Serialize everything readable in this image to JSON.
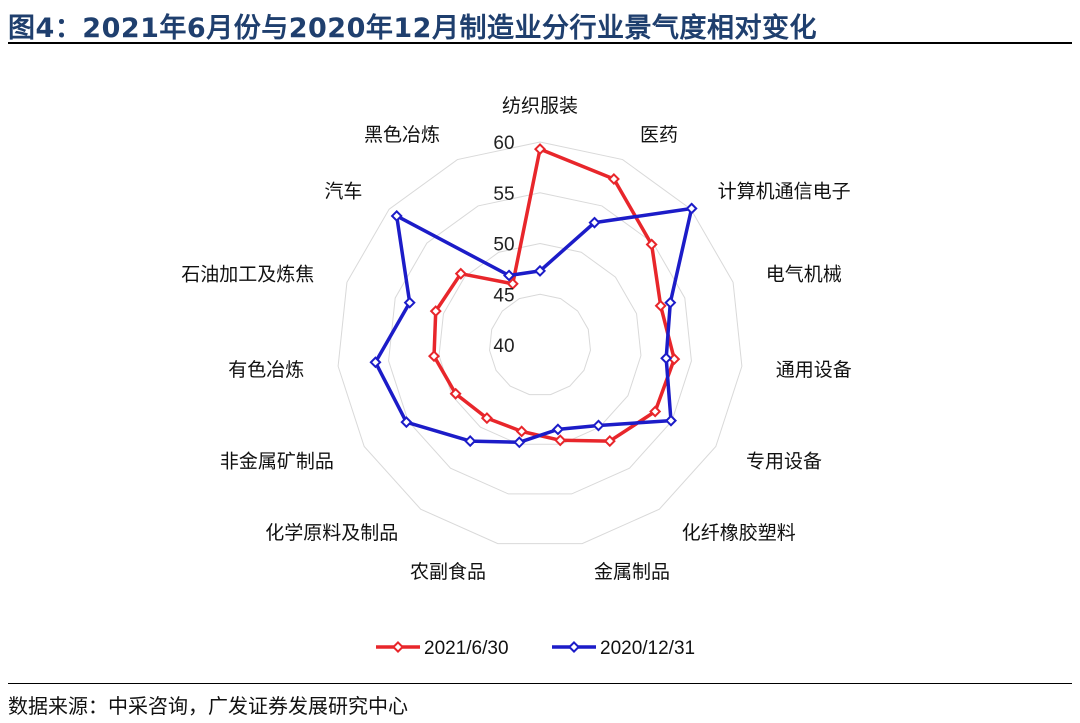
{
  "header": {
    "title": "图4：2021年6月份与2020年12月制造业分行业景气度相对变化"
  },
  "footer": {
    "source": "数据来源：中采咨询，广发证券发展研究中心"
  },
  "chart_data": {
    "type": "radar",
    "title": "图4：2021年6月份与2020年12月制造业分行业景气度相对变化",
    "categories": [
      "纺织服装",
      "医药",
      "计算机通信电子",
      "电气机械",
      "通用设备",
      "专用设备",
      "化纤橡胶塑料",
      "金属制品",
      "农副食品",
      "化学原料及制品",
      "非金属矿制品",
      "有色冶炼",
      "石油加工及炼焦",
      "汽车",
      "黑色冶炼"
    ],
    "ticks": [
      40,
      45,
      50,
      55,
      60
    ],
    "range": [
      40,
      60
    ],
    "grid": true,
    "legend_position": "bottom",
    "series": [
      {
        "name": "2021/6/30",
        "color": "#e8262b",
        "values": [
          59.3,
          57.9,
          54.8,
          52.5,
          53.3,
          53.1,
          51.7,
          49.6,
          48.7,
          48.9,
          49.6,
          50.5,
          50.8,
          50.5,
          46.6
        ]
      },
      {
        "name": "2020/12/31",
        "color": "#1c1cc8",
        "values": [
          47.3,
          53.2,
          60.1,
          53.5,
          52.5,
          54.9,
          49.8,
          48.5,
          49.8,
          51.7,
          55.2,
          56.3,
          53.5,
          59.0,
          47.5
        ]
      }
    ]
  }
}
